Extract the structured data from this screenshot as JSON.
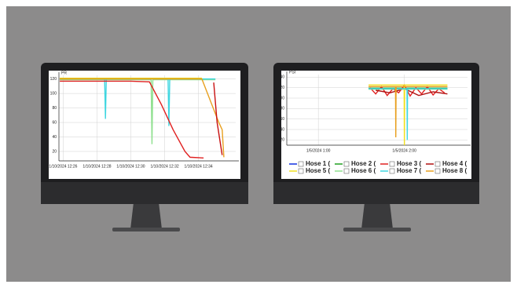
{
  "chart_data": [
    {
      "type": "line",
      "y_label": "PR",
      "xlim": [
        745.75,
        756.2
      ],
      "ylim": [
        7,
        125
      ],
      "xticks": [
        {
          "value": 746,
          "label": "1/10/2024 12:26"
        },
        {
          "value": 748,
          "label": "1/10/2024 12:28"
        },
        {
          "value": 750,
          "label": "1/10/2024 12:30"
        },
        {
          "value": 752,
          "label": "1/10/2024 12:32"
        },
        {
          "value": 754,
          "label": "1/10/2024 12:34"
        }
      ],
      "yticks": [
        20,
        40,
        60,
        80,
        100,
        120
      ],
      "grid": true,
      "series": [
        {
          "color": "#f0d000",
          "x": [
            745.8,
            754.2
          ],
          "values": [
            121,
            121
          ]
        },
        {
          "color": "#8fe08f",
          "x": [
            745.8,
            751.2,
            751.25,
            751.3,
            755
          ],
          "values": [
            119,
            119,
            30,
            119,
            119
          ]
        },
        {
          "color": "#3fd6e0",
          "x": [
            745.8,
            748.45,
            748.5,
            748.55,
            752.2,
            752.25,
            752.3,
            755
          ],
          "values": [
            120,
            120,
            65,
            120,
            120,
            55,
            120,
            120
          ]
        },
        {
          "color": "#e8a020",
          "x": [
            745.8,
            754.2,
            755.2,
            755.4,
            755.5
          ],
          "values": [
            120,
            120,
            60,
            50,
            12
          ]
        },
        {
          "color": "#c81010",
          "x": [
            754.9,
            755.1,
            755.4
          ],
          "values": [
            115,
            60,
            15
          ]
        },
        {
          "color": "#e02020",
          "x": [
            745.8,
            750.0,
            751.1,
            751.8,
            752.5,
            753.2,
            753.5,
            754.3
          ],
          "values": [
            117,
            117,
            116,
            85,
            50,
            20,
            12,
            11
          ]
        }
      ]
    },
    {
      "type": "line",
      "y_label": "PSI",
      "xlim": [
        38,
        164
      ],
      "ylim": [
        10,
        145
      ],
      "xticks": [
        {
          "value": 60,
          "label": "1/5/2024 1:00"
        },
        {
          "value": 120,
          "label": "1/5/2024 2:00"
        }
      ],
      "yticks": [
        20,
        40,
        60,
        80,
        100,
        120,
        140
      ],
      "grid": true,
      "series": [
        {
          "name": "Hose 1 (",
          "color": "#1030e0",
          "x": [
            95,
            150
          ],
          "values": [
            118,
            118
          ]
        },
        {
          "name": "Hose 2 (",
          "color": "#20a020",
          "x": [
            95,
            150
          ],
          "values": [
            119,
            119
          ]
        },
        {
          "name": "Hose 3 (",
          "color": "#e02020",
          "x": [
            96,
            100,
            104,
            108,
            112,
            116,
            120,
            124,
            128,
            132,
            136,
            140,
            144,
            148
          ],
          "values": [
            120,
            108,
            122,
            105,
            118,
            110,
            125,
            104,
            120,
            108,
            122,
            106,
            118,
            110
          ]
        },
        {
          "name": "Hose 4 (",
          "color": "#b01010",
          "x": [
            100,
            110,
            120,
            130,
            140,
            150
          ],
          "values": [
            115,
            110,
            118,
            105,
            112,
            108
          ]
        },
        {
          "name": "Hose 5 (",
          "color": "#f0e020",
          "x": [
            95,
            119.8,
            120,
            120.2,
            150
          ],
          "values": [
            125,
            125,
            10,
            125,
            125
          ]
        },
        {
          "name": "Hose 6 (",
          "color": "#8fe08f",
          "x": [
            95,
            150
          ],
          "values": [
            117,
            117
          ]
        },
        {
          "name": "Hose 7 (",
          "color": "#3fd6e0",
          "x": [
            95,
            121.8,
            122,
            122.2,
            150
          ],
          "values": [
            118,
            118,
            20,
            118,
            118
          ]
        },
        {
          "name": "Hose 8 (",
          "color": "#e8a020",
          "x": [
            95,
            113.8,
            114,
            114.2,
            150
          ],
          "values": [
            122,
            122,
            25,
            122,
            122
          ]
        }
      ]
    }
  ]
}
